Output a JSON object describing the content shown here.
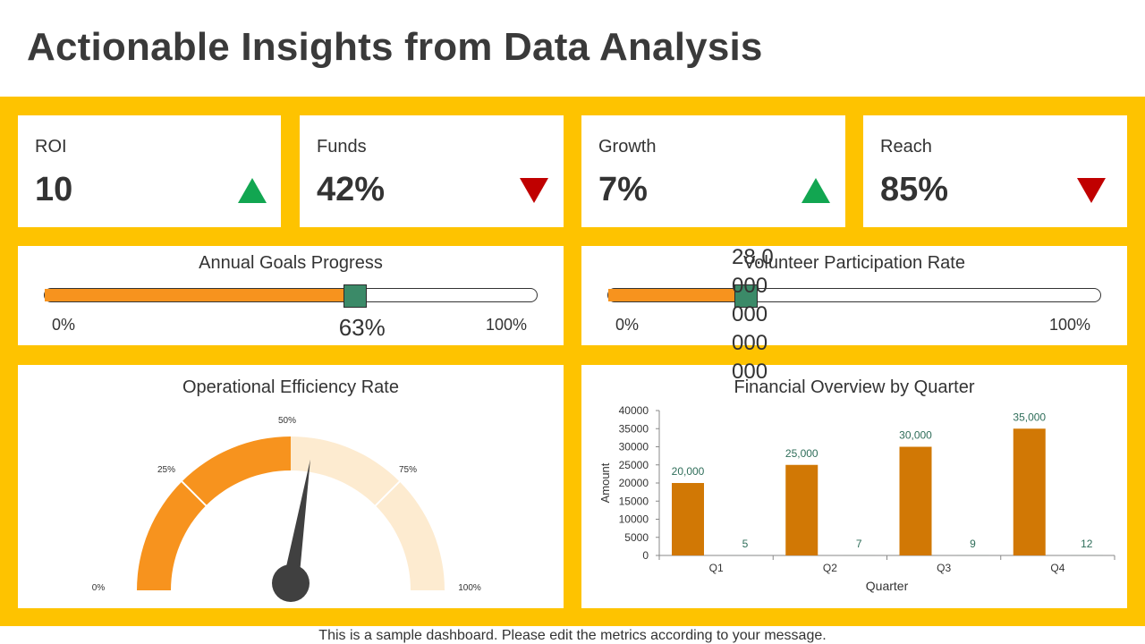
{
  "title": "Actionable Insights from Data Analysis",
  "kpis": [
    {
      "label": "ROI",
      "value": "10",
      "trend": "up",
      "color": "#12a651"
    },
    {
      "label": "Funds",
      "value": "42%",
      "trend": "down",
      "color": "#c00000"
    },
    {
      "label": "Growth",
      "value": "7%",
      "trend": "up",
      "color": "#12a651"
    },
    {
      "label": "Reach",
      "value": "85%",
      "trend": "down",
      "color": "#c00000"
    }
  ],
  "annual_goals": {
    "title": "Annual  Goals Progress",
    "progress": 0.63,
    "min_label": "0%",
    "max_label": "100%",
    "value_label": "63%"
  },
  "volunteer": {
    "title": "Volunteer  Participation Rate",
    "progress": 0.28,
    "min_label": "0%",
    "max_label": "100%",
    "value_label": "28.0 000 000 000 000"
  },
  "efficiency": {
    "title": "Operational  Efficiency Rate",
    "value": 0.55,
    "ticks": [
      "0%",
      "25%",
      "50%",
      "75%",
      "100%"
    ]
  },
  "chart_data": {
    "type": "bar",
    "title": "Financial Overview by Quarter",
    "xlabel": "Quarter",
    "ylabel": "Amount",
    "categories": [
      "Q1",
      "Q2",
      "Q3",
      "Q4"
    ],
    "ylim": [
      0,
      40000
    ],
    "yticks": [
      0,
      5000,
      10000,
      15000,
      20000,
      25000,
      30000,
      35000,
      40000
    ],
    "series": [
      {
        "values": [
          20000,
          25000,
          30000,
          35000
        ],
        "labels": [
          "20,000",
          "25,000",
          "30,000",
          "35,000"
        ],
        "color": "#d17805"
      },
      {
        "values": [
          5,
          7,
          9,
          12
        ],
        "labels": [
          "5",
          "7",
          "9",
          "12"
        ],
        "color": "#3b8a68"
      }
    ]
  },
  "footer": "This is a sample dashboard. Please edit the metrics according to your message."
}
